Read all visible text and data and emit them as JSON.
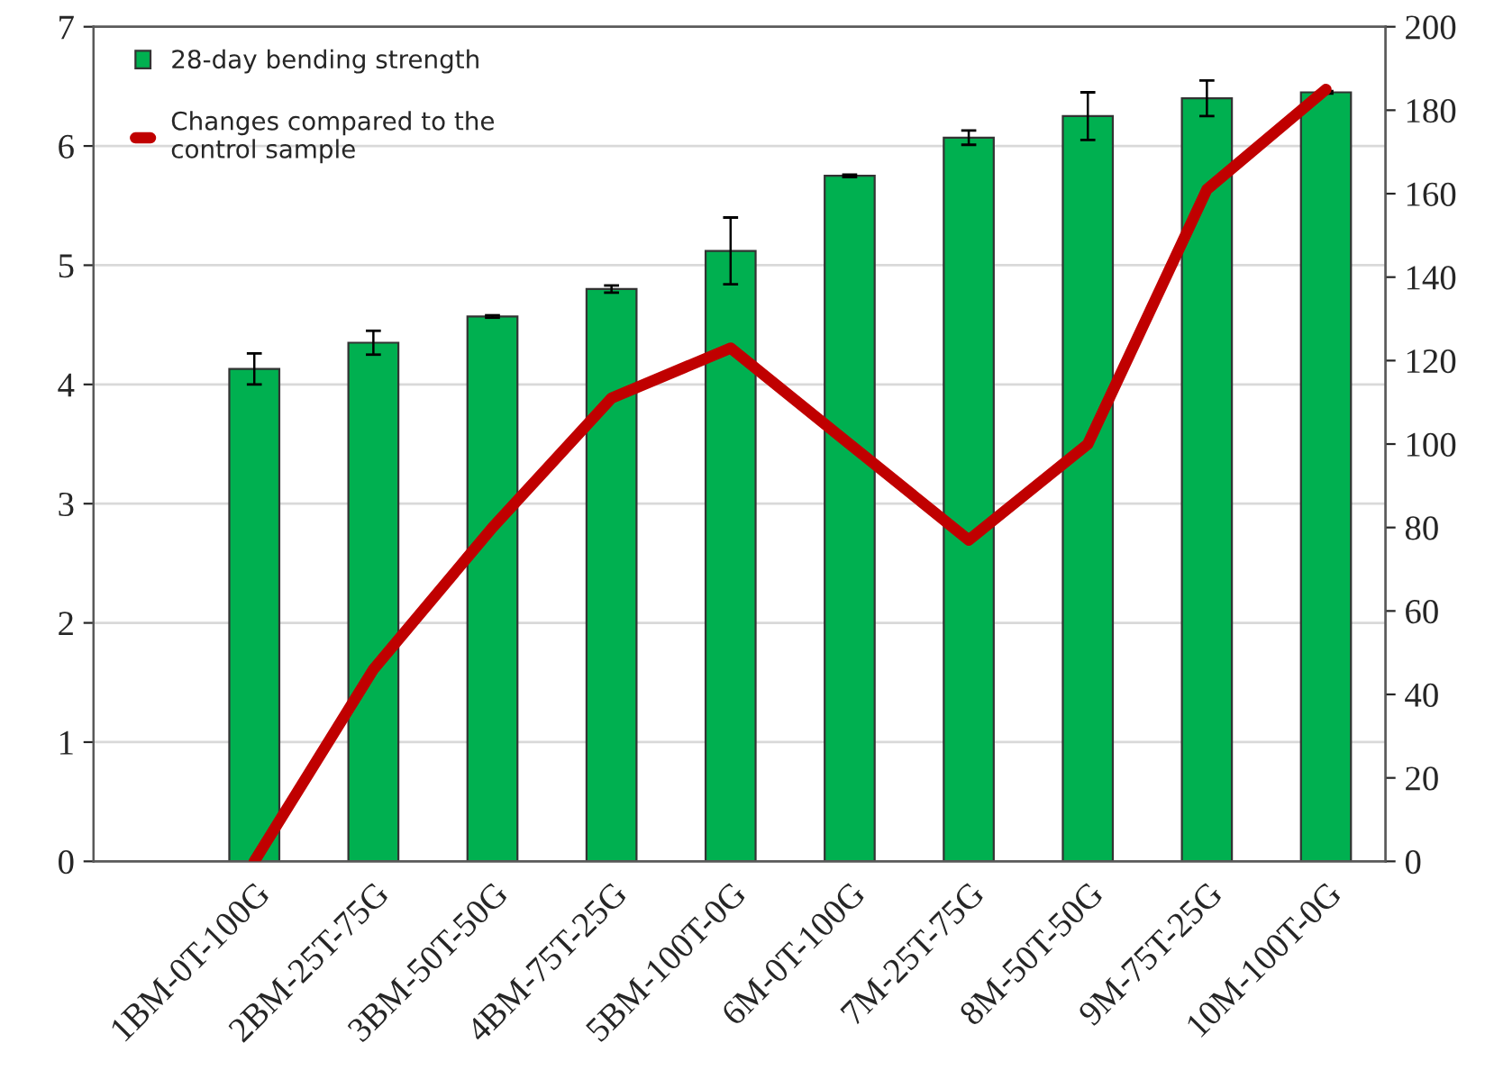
{
  "chart_data": {
    "type": "bar",
    "categories": [
      "1BM-0T-100G",
      "2BM-25T-75G",
      "3BM-50T-50G",
      "4BM-75T-25G",
      "5BM-100T-0G",
      "6M-0T-100G",
      "7M-25T-75G",
      "8M-50T-50G",
      "9M-75T-25G",
      "10M-100T-0G"
    ],
    "series": [
      {
        "name": "28-day bending strength",
        "color": "#00b050",
        "values": [
          4.13,
          4.35,
          4.57,
          4.8,
          5.12,
          5.75,
          6.07,
          6.25,
          6.4,
          6.45
        ],
        "errors": [
          0.13,
          0.1,
          0.01,
          0.03,
          0.28,
          0.01,
          0.06,
          0.2,
          0.15,
          0.01
        ]
      },
      {
        "name": "Changes compared to the\ncontrol sample",
        "type": "line",
        "axis": "y2",
        "color": "#c00000",
        "values": [
          0,
          46,
          80,
          111,
          123,
          100,
          77,
          100,
          161,
          185
        ]
      }
    ],
    "ylim": [
      0,
      7
    ],
    "yticks": [
      0,
      1,
      2,
      3,
      4,
      5,
      6,
      7
    ],
    "y2lim": [
      0,
      200
    ],
    "y2ticks": [
      0,
      20,
      40,
      60,
      80,
      100,
      120,
      140,
      160,
      180,
      200
    ],
    "grid": "y",
    "legend": "top left",
    "marker": "none",
    "line_style": "solid"
  }
}
